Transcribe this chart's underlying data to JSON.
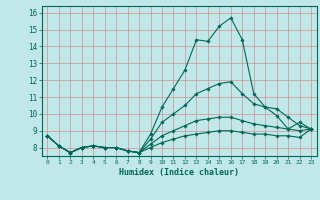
{
  "xlabel": "Humidex (Indice chaleur)",
  "ylabel": "",
  "background_color": "#c0e8e8",
  "grid_color": "#d09090",
  "line_color": "#006858",
  "xlim_min": -0.5,
  "xlim_max": 23.5,
  "ylim_min": 7.5,
  "ylim_max": 16.4,
  "xtick_labels": [
    "0",
    "1",
    "2",
    "3",
    "4",
    "5",
    "6",
    "7",
    "8",
    "9",
    "10",
    "11",
    "12",
    "13",
    "14",
    "15",
    "16",
    "17",
    "18",
    "19",
    "20",
    "21",
    "22",
    "23"
  ],
  "ytick_vals": [
    8,
    9,
    10,
    11,
    12,
    13,
    14,
    15,
    16
  ],
  "series": [
    [
      8.7,
      8.1,
      7.7,
      8.0,
      8.1,
      8.0,
      8.0,
      7.8,
      7.7,
      8.8,
      10.4,
      11.5,
      12.6,
      14.4,
      14.3,
      15.2,
      15.7,
      14.4,
      11.2,
      10.4,
      9.9,
      9.1,
      9.5,
      9.1
    ],
    [
      8.7,
      8.1,
      7.7,
      8.0,
      8.1,
      8.0,
      8.0,
      7.8,
      7.7,
      8.5,
      9.5,
      10.0,
      10.5,
      11.2,
      11.5,
      11.8,
      11.9,
      11.2,
      10.6,
      10.4,
      10.3,
      9.8,
      9.3,
      9.1
    ],
    [
      8.7,
      8.1,
      7.7,
      8.0,
      8.1,
      8.0,
      8.0,
      7.8,
      7.7,
      8.2,
      8.7,
      9.0,
      9.3,
      9.6,
      9.7,
      9.8,
      9.8,
      9.6,
      9.4,
      9.3,
      9.2,
      9.1,
      9.0,
      9.1
    ],
    [
      8.7,
      8.1,
      7.7,
      8.0,
      8.1,
      8.0,
      8.0,
      7.8,
      7.7,
      8.0,
      8.3,
      8.5,
      8.7,
      8.8,
      8.9,
      9.0,
      9.0,
      8.9,
      8.8,
      8.8,
      8.7,
      8.7,
      8.6,
      9.1
    ]
  ]
}
